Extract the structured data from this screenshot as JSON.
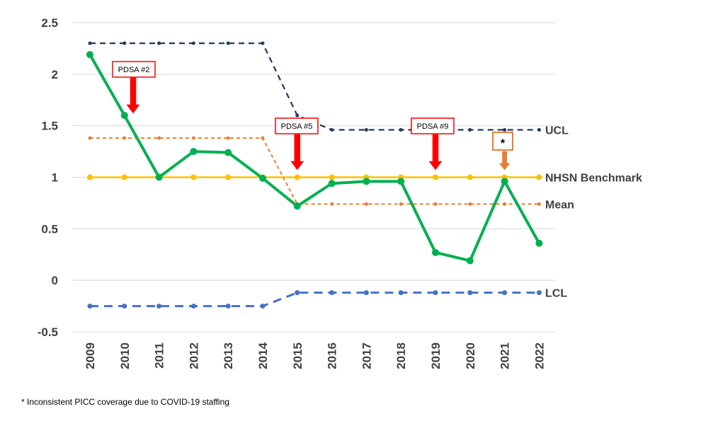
{
  "chart_data": {
    "type": "line",
    "categories": [
      "2009",
      "2010",
      "2011",
      "2012",
      "2013",
      "2014",
      "2015",
      "2016",
      "2017",
      "2018",
      "2019",
      "2020",
      "2021",
      "2022"
    ],
    "ylim": [
      -0.5,
      2.5
    ],
    "yticks": [
      2.5,
      2,
      1.5,
      1,
      0.5,
      0,
      -0.5
    ],
    "ytick_labels": [
      "2.5",
      "2",
      "1.5",
      "1",
      "0.5",
      "0",
      "-0.5"
    ],
    "grid": true,
    "series": [
      {
        "key": "rate",
        "values": [
          2.19,
          1.6,
          1.0,
          1.25,
          1.24,
          0.99,
          0.72,
          0.94,
          0.96,
          0.96,
          0.27,
          0.19,
          0.96,
          0.36
        ],
        "color": "#00b050",
        "style": "solid"
      },
      {
        "key": "ucl",
        "name": "UCL",
        "values": [
          2.3,
          2.3,
          2.3,
          2.3,
          2.3,
          2.3,
          1.6,
          1.46,
          1.46,
          1.46,
          1.46,
          1.46,
          1.46,
          1.46
        ],
        "color": "#1f3864",
        "style": "dashed"
      },
      {
        "key": "benchmark",
        "name": "NHSN Benchmark",
        "values": [
          1,
          1,
          1,
          1,
          1,
          1,
          1,
          1,
          1,
          1,
          1,
          1,
          1,
          1
        ],
        "color": "#ffc000",
        "style": "solid"
      },
      {
        "key": "mean",
        "name": "Mean",
        "values": [
          1.38,
          1.38,
          1.38,
          1.38,
          1.38,
          1.38,
          0.74,
          0.74,
          0.74,
          0.74,
          0.74,
          0.74,
          0.74,
          0.74
        ],
        "color": "#ed7d31",
        "style": "dashed"
      },
      {
        "key": "lcl",
        "name": "LCL",
        "values": [
          -0.25,
          -0.25,
          -0.25,
          -0.25,
          -0.25,
          -0.25,
          -0.12,
          -0.12,
          -0.12,
          -0.12,
          -0.12,
          -0.12,
          -0.12,
          -0.12
        ],
        "color": "#4472c4",
        "style": "dashed"
      }
    ],
    "annotations": [
      {
        "key": "pdsa2",
        "text": "PDSA #2",
        "x_index": 1.25,
        "color": "#ff0000"
      },
      {
        "key": "pdsa5",
        "text": "PDSA #5",
        "x_index": 6,
        "color": "#ff0000"
      },
      {
        "key": "pdsa9",
        "text": "PDSA #9",
        "x_index": 10,
        "color": "#ff0000"
      },
      {
        "key": "covid",
        "text": "*",
        "x_index": 12,
        "color": "#ed7d31"
      }
    ]
  },
  "footnote": "* Inconsistent PICC coverage due to COVID-19 staffing"
}
